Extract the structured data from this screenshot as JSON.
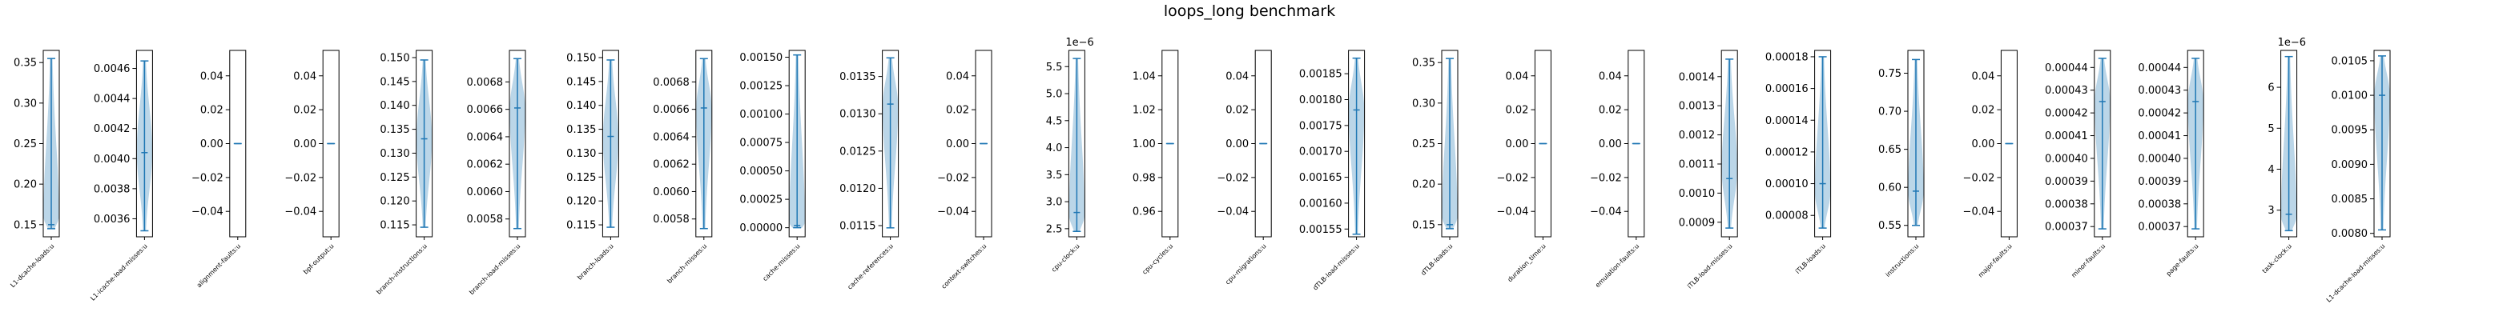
{
  "chart_data": {
    "title": "loops_long benchmark",
    "type": "violin",
    "colors": {
      "body": "#1f77b4",
      "lines": "#1f77b4",
      "axes": "#000000"
    },
    "panels": [
      {
        "label": "L1-dcache-loads:u",
        "ylim": [
          0.135,
          0.365
        ],
        "ticks": [
          0.15,
          0.2,
          0.25,
          0.3,
          0.35
        ],
        "tick_labels": [
          "0.15",
          "0.20",
          "0.25",
          "0.30",
          "0.35"
        ],
        "min": 0.145,
        "max": 0.355,
        "median": 0.15,
        "peak": 0.16
      },
      {
        "label": "L1-icache-load-misses:u",
        "ylim": [
          0.00348,
          0.00472
        ],
        "ticks": [
          0.0036,
          0.0038,
          0.004,
          0.0042,
          0.0044,
          0.0046
        ],
        "tick_labels": [
          "0.0036",
          "0.0038",
          "0.0040",
          "0.0042",
          "0.0044",
          "0.0046"
        ],
        "min": 0.00352,
        "max": 0.00465,
        "median": 0.00404,
        "peak": 0.00405
      },
      {
        "label": "alignment-faults:u",
        "ylim": [
          -0.055,
          0.055
        ],
        "ticks": [
          -0.04,
          -0.02,
          0.0,
          0.02,
          0.04
        ],
        "tick_labels": [
          "−0.04",
          "−0.02",
          "0.00",
          "0.02",
          "0.04"
        ],
        "min": 0,
        "max": 0,
        "median": 0,
        "peak": 0
      },
      {
        "label": "bpf-output:u",
        "ylim": [
          -0.055,
          0.055
        ],
        "ticks": [
          -0.04,
          -0.02,
          0.0,
          0.02,
          0.04
        ],
        "tick_labels": [
          "−0.04",
          "−0.02",
          "0.00",
          "0.02",
          "0.04"
        ],
        "min": 0,
        "max": 0,
        "median": 0,
        "peak": 0
      },
      {
        "label": "branch-instructions:u",
        "ylim": [
          0.1125,
          0.1515
        ],
        "ticks": [
          0.115,
          0.12,
          0.125,
          0.13,
          0.135,
          0.14,
          0.145,
          0.15
        ],
        "tick_labels": [
          "0.115",
          "0.120",
          "0.125",
          "0.130",
          "0.135",
          "0.140",
          "0.145",
          "0.150"
        ],
        "min": 0.1145,
        "max": 0.1495,
        "median": 0.133,
        "peak": 0.133
      },
      {
        "label": "branch-load-misses:u",
        "ylim": [
          0.00567,
          0.00703
        ],
        "ticks": [
          0.0058,
          0.006,
          0.0062,
          0.0064,
          0.0066,
          0.0068
        ],
        "tick_labels": [
          "0.0058",
          "0.0060",
          "0.0062",
          "0.0064",
          "0.0066",
          "0.0068"
        ],
        "min": 0.00573,
        "max": 0.00697,
        "median": 0.00661,
        "peak": 0.0066
      },
      {
        "label": "branch-loads:u",
        "ylim": [
          0.1125,
          0.1515
        ],
        "ticks": [
          0.115,
          0.12,
          0.125,
          0.13,
          0.135,
          0.14,
          0.145,
          0.15
        ],
        "tick_labels": [
          "0.115",
          "0.120",
          "0.125",
          "0.130",
          "0.135",
          "0.140",
          "0.145",
          "0.150"
        ],
        "min": 0.1145,
        "max": 0.1495,
        "median": 0.1335,
        "peak": 0.133
      },
      {
        "label": "branch-misses:u",
        "ylim": [
          0.00567,
          0.00703
        ],
        "ticks": [
          0.0058,
          0.006,
          0.0062,
          0.0064,
          0.0066,
          0.0068
        ],
        "tick_labels": [
          "0.0058",
          "0.0060",
          "0.0062",
          "0.0064",
          "0.0066",
          "0.0068"
        ],
        "min": 0.00573,
        "max": 0.00697,
        "median": 0.00661,
        "peak": 0.0066
      },
      {
        "label": "cache-misses:u",
        "ylim": [
          -8e-05,
          0.00156
        ],
        "ticks": [
          0.0,
          0.00025,
          0.0005,
          0.00075,
          0.001,
          0.00125,
          0.0015
        ],
        "tick_labels": [
          "0.00000",
          "0.00025",
          "0.00050",
          "0.00075",
          "0.00100",
          "0.00125",
          "0.00150"
        ],
        "min": 0.0,
        "max": 0.00152,
        "median": 2e-05,
        "peak": 5e-05
      },
      {
        "label": "cache-references:u",
        "ylim": [
          0.01135,
          0.01385
        ],
        "ticks": [
          0.0115,
          0.012,
          0.0125,
          0.013,
          0.0135
        ],
        "tick_labels": [
          "0.0115",
          "0.0120",
          "0.0125",
          "0.0130",
          "0.0135"
        ],
        "min": 0.01147,
        "max": 0.01375,
        "median": 0.01313,
        "peak": 0.0131
      },
      {
        "label": "context-switches:u",
        "ylim": [
          -0.055,
          0.055
        ],
        "ticks": [
          -0.04,
          -0.02,
          0.0,
          0.02,
          0.04
        ],
        "tick_labels": [
          "−0.04",
          "−0.02",
          "0.00",
          "0.02",
          "0.04"
        ],
        "min": 0,
        "max": 0,
        "median": 0,
        "peak": 0
      },
      {
        "label": "cpu-clock:u",
        "ylim": [
          2.35,
          5.8
        ],
        "ticks": [
          2.5,
          3.0,
          3.5,
          4.0,
          4.5,
          5.0,
          5.5
        ],
        "tick_labels": [
          "2.5",
          "3.0",
          "3.5",
          "4.0",
          "4.5",
          "5.0",
          "5.5"
        ],
        "offset_label": "1e−6",
        "min": 2.45,
        "max": 5.65,
        "median": 2.8,
        "peak": 2.75
      },
      {
        "label": "cpu-cycles:u",
        "ylim": [
          0.945,
          1.055
        ],
        "ticks": [
          0.96,
          0.98,
          1.0,
          1.02,
          1.04
        ],
        "tick_labels": [
          "0.96",
          "0.98",
          "1.00",
          "1.02",
          "1.04"
        ],
        "min": 1,
        "max": 1,
        "median": 1,
        "peak": 1
      },
      {
        "label": "cpu-migrations:u",
        "ylim": [
          -0.055,
          0.055
        ],
        "ticks": [
          -0.04,
          -0.02,
          0.0,
          0.02,
          0.04
        ],
        "tick_labels": [
          "−0.04",
          "−0.02",
          "0.00",
          "0.02",
          "0.04"
        ],
        "min": 0,
        "max": 0,
        "median": 0,
        "peak": 0
      },
      {
        "label": "dTLB-load-misses:u",
        "ylim": [
          0.001535,
          0.001895
        ],
        "ticks": [
          0.00155,
          0.0016,
          0.00165,
          0.0017,
          0.00175,
          0.0018,
          0.00185
        ],
        "tick_labels": [
          "0.00155",
          "0.00160",
          "0.00165",
          "0.00170",
          "0.00175",
          "0.00180",
          "0.00185"
        ],
        "min": 0.00154,
        "max": 0.00188,
        "median": 0.00178,
        "peak": 0.00178
      },
      {
        "label": "dTLB-loads:u",
        "ylim": [
          0.135,
          0.365
        ],
        "ticks": [
          0.15,
          0.2,
          0.25,
          0.3,
          0.35
        ],
        "tick_labels": [
          "0.15",
          "0.20",
          "0.25",
          "0.30",
          "0.35"
        ],
        "min": 0.145,
        "max": 0.355,
        "median": 0.15,
        "peak": 0.16
      },
      {
        "label": "duration_time:u",
        "ylim": [
          -0.055,
          0.055
        ],
        "ticks": [
          -0.04,
          -0.02,
          0.0,
          0.02,
          0.04
        ],
        "tick_labels": [
          "−0.04",
          "−0.02",
          "0.00",
          "0.02",
          "0.04"
        ],
        "min": 0,
        "max": 0,
        "median": 0,
        "peak": 0
      },
      {
        "label": "emulation-faults:u",
        "ylim": [
          -0.055,
          0.055
        ],
        "ticks": [
          -0.04,
          -0.02,
          0.0,
          0.02,
          0.04
        ],
        "tick_labels": [
          "−0.04",
          "−0.02",
          "0.00",
          "0.02",
          "0.04"
        ],
        "min": 0,
        "max": 0,
        "median": 0,
        "peak": 0
      },
      {
        "label": "iTLB-load-misses:u",
        "ylim": [
          0.00085,
          0.00149
        ],
        "ticks": [
          0.0009,
          0.001,
          0.0011,
          0.0012,
          0.0013,
          0.0014
        ],
        "tick_labels": [
          "0.0009",
          "0.0010",
          "0.0011",
          "0.0012",
          "0.0013",
          "0.0014"
        ],
        "min": 0.00088,
        "max": 0.00146,
        "median": 0.00105,
        "peak": 0.00108
      },
      {
        "label": "iTLB-loads:u",
        "ylim": [
          6.65e-05,
          0.000184
        ],
        "ticks": [
          8e-05,
          0.0001,
          0.00012,
          0.00014,
          0.00016,
          0.00018
        ],
        "tick_labels": [
          "0.00008",
          "0.00010",
          "0.00012",
          "0.00014",
          "0.00016",
          "0.00018"
        ],
        "min": 7.2e-05,
        "max": 0.00018,
        "median": 0.0001,
        "peak": 9.5e-05
      },
      {
        "label": "instructions:u",
        "ylim": [
          0.535,
          0.78
        ],
        "ticks": [
          0.55,
          0.6,
          0.65,
          0.7,
          0.75
        ],
        "tick_labels": [
          "0.55",
          "0.60",
          "0.65",
          "0.70",
          "0.75"
        ],
        "min": 0.55,
        "max": 0.768,
        "median": 0.595,
        "peak": 0.595
      },
      {
        "label": "major-faults:u",
        "ylim": [
          -0.055,
          0.055
        ],
        "ticks": [
          -0.04,
          -0.02,
          0.0,
          0.02,
          0.04
        ],
        "tick_labels": [
          "−0.04",
          "−0.02",
          "0.00",
          "0.02",
          "0.04"
        ],
        "min": 0,
        "max": 0,
        "median": 0,
        "peak": 0
      },
      {
        "label": "minor-faults:u",
        "ylim": [
          0.0003655,
          0.0004475
        ],
        "ticks": [
          0.00037,
          0.00038,
          0.00039,
          0.0004,
          0.00041,
          0.00042,
          0.00043,
          0.00044
        ],
        "tick_labels": [
          "0.00037",
          "0.00038",
          "0.00039",
          "0.00040",
          "0.00041",
          "0.00042",
          "0.00043",
          "0.00044"
        ],
        "min": 0.000369,
        "max": 0.000444,
        "median": 0.000425,
        "peak": 0.000425
      },
      {
        "label": "page-faults:u",
        "ylim": [
          0.0003655,
          0.0004475
        ],
        "ticks": [
          0.00037,
          0.00038,
          0.00039,
          0.0004,
          0.00041,
          0.00042,
          0.00043,
          0.00044
        ],
        "tick_labels": [
          "0.00037",
          "0.00038",
          "0.00039",
          "0.00040",
          "0.00041",
          "0.00042",
          "0.00043",
          "0.00044"
        ],
        "min": 0.000369,
        "max": 0.000444,
        "median": 0.000425,
        "peak": 0.000425
      },
      {
        "label": "task-clock:u",
        "ylim": [
          2.35,
          6.9
        ],
        "ticks": [
          3,
          4,
          5,
          6
        ],
        "tick_labels": [
          "3",
          "4",
          "5",
          "6"
        ],
        "offset_label": "1e−6",
        "min": 2.5,
        "max": 6.75,
        "median": 2.9,
        "peak": 2.85
      },
      {
        "label": "L1-dcache-load-misses:u",
        "ylim": [
          0.00795,
          0.01065
        ],
        "ticks": [
          0.008,
          0.0085,
          0.009,
          0.0095,
          0.01,
          0.0105
        ],
        "tick_labels": [
          "0.0080",
          "0.0085",
          "0.0090",
          "0.0095",
          "0.0100",
          "0.0105"
        ],
        "min": 0.00805,
        "max": 0.01057,
        "median": 0.01,
        "peak": 0.01
      }
    ]
  }
}
